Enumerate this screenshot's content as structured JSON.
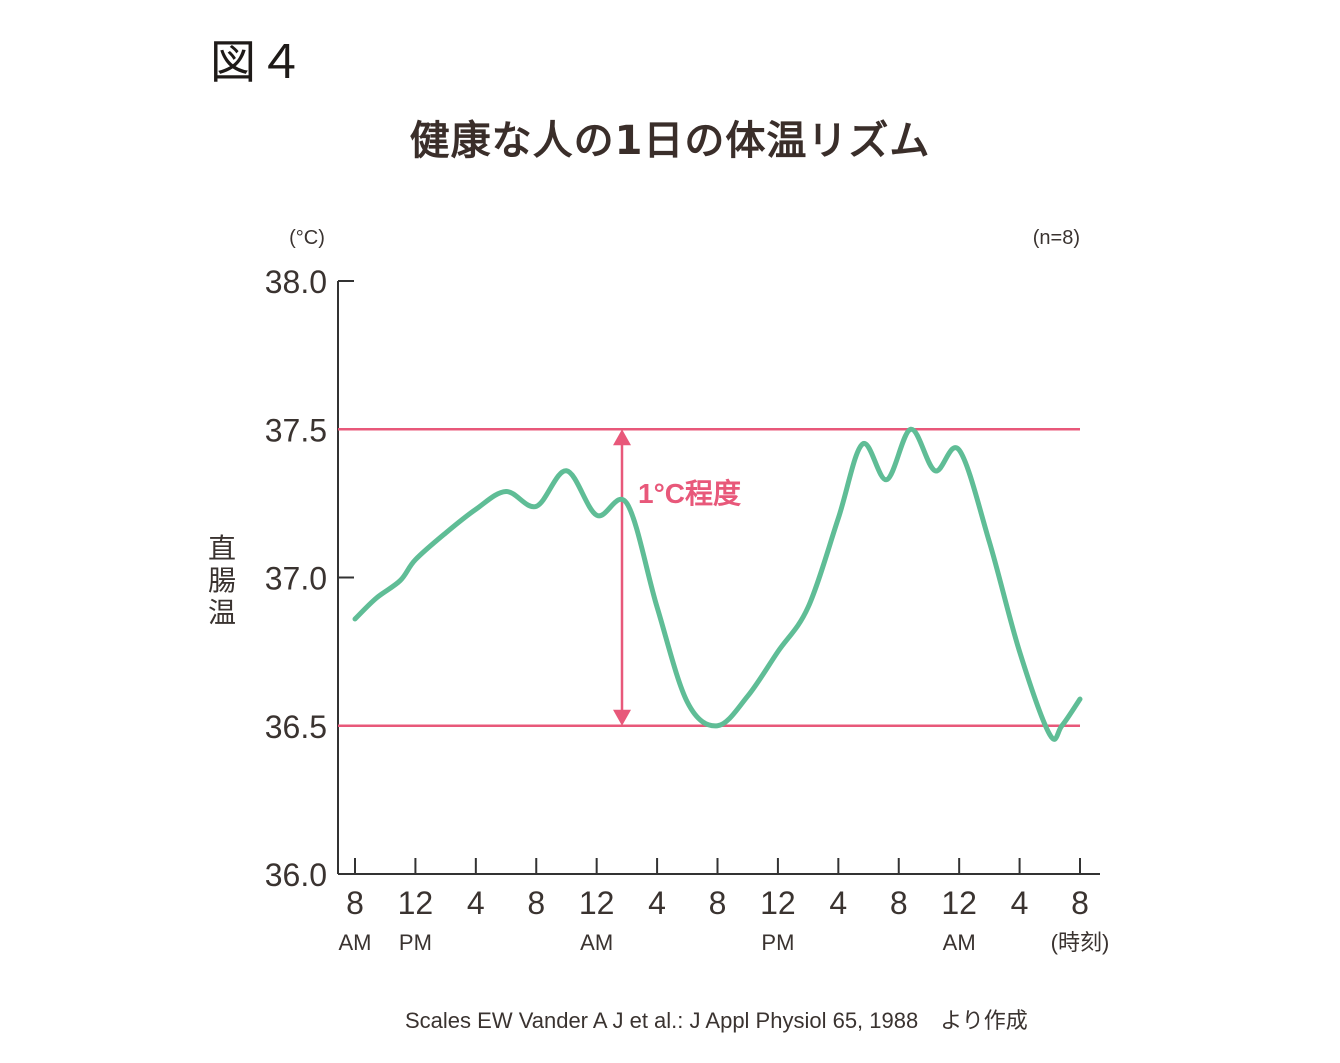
{
  "figure_label": "図４",
  "chart_data": {
    "type": "line",
    "title": "健康な人の1日の体温リズム",
    "y_unit": "(°C)",
    "sample_note": "(n=8)",
    "ylabel": "直腸温",
    "ylim": [
      36.0,
      38.0
    ],
    "y_ticks": [
      "36.0",
      "36.5",
      "37.0",
      "37.5",
      "38.0"
    ],
    "x_ticks": [
      "8",
      "12",
      "4",
      "8",
      "12",
      "4",
      "8",
      "12",
      "4",
      "8",
      "12",
      "4",
      "8"
    ],
    "x_sublabels": [
      {
        "tick": 0,
        "text": "AM"
      },
      {
        "tick": 1,
        "text": "PM"
      },
      {
        "tick": 4,
        "text": "AM"
      },
      {
        "tick": 7,
        "text": "PM"
      },
      {
        "tick": 10,
        "text": "AM"
      },
      {
        "tick": 12,
        "text": "(時刻)"
      }
    ],
    "reference_lines": [
      37.5,
      36.5
    ],
    "annotation": "1°C程度",
    "colors": {
      "series": "#5fbd96",
      "reference": "#e8587a",
      "axis": "#333333"
    },
    "series": [
      {
        "x": [
          0,
          0.35,
          0.75,
          1.0,
          1.5,
          2.0,
          2.5,
          3.0,
          3.5,
          4.0,
          4.5,
          5.0,
          5.5,
          6.0,
          6.5,
          7.0,
          7.5,
          8.0,
          8.4,
          8.8,
          9.2,
          9.6,
          10.0,
          10.5,
          11.0,
          11.5,
          11.7,
          12.0
        ],
        "y": [
          36.86,
          36.93,
          36.99,
          37.06,
          37.15,
          37.23,
          37.29,
          37.24,
          37.36,
          37.21,
          37.25,
          36.9,
          36.58,
          36.5,
          36.6,
          36.75,
          36.9,
          37.2,
          37.45,
          37.33,
          37.5,
          37.36,
          37.43,
          37.12,
          36.75,
          36.47,
          36.5,
          36.59
        ]
      }
    ]
  },
  "source_text": "Scales EW Vander A J et al.: J Appl Physiol 65, 1988　より作成"
}
